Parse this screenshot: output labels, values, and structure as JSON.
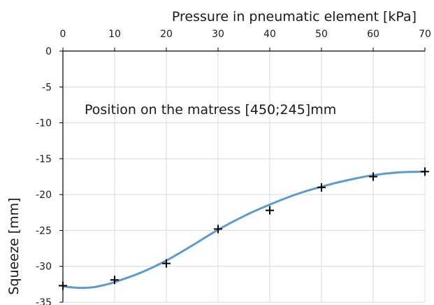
{
  "chart_data": {
    "type": "scatter",
    "title": "",
    "xlabel": "Pressure in pneumatic element [kPa]",
    "ylabel": "Squeeze [mm]",
    "annotation": "Position on the matress [450;245]mm",
    "x_axis_position": "top",
    "xlim": [
      0,
      70
    ],
    "ylim": [
      -35,
      0
    ],
    "xticks": [
      0,
      10,
      20,
      30,
      40,
      50,
      60,
      70
    ],
    "yticks": [
      0,
      -5,
      -10,
      -15,
      -20,
      -25,
      -30,
      -35
    ],
    "grid": true,
    "legend": "none",
    "series": [
      {
        "kind": "markers",
        "marker": "plus",
        "color": "#000000",
        "x": [
          0,
          10,
          20,
          30,
          40,
          50,
          60,
          70
        ],
        "y": [
          -32.7,
          -31.9,
          -29.6,
          -24.8,
          -22.2,
          -19.0,
          -17.5,
          -16.8
        ]
      },
      {
        "kind": "trend-line",
        "color": "#5b9bd5",
        "x": [
          0,
          2,
          4,
          6,
          8,
          10,
          15,
          20,
          25,
          30,
          35,
          40,
          45,
          50,
          55,
          60,
          65,
          70
        ],
        "y": [
          -32.8,
          -32.95,
          -33.0,
          -32.9,
          -32.6,
          -32.2,
          -30.9,
          -29.2,
          -27.1,
          -24.9,
          -23.0,
          -21.4,
          -20.0,
          -18.9,
          -18.0,
          -17.3,
          -16.9,
          -16.8
        ]
      }
    ]
  }
}
